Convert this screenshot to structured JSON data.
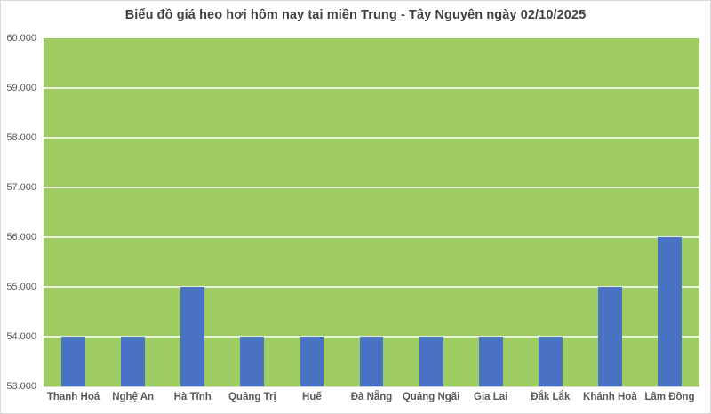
{
  "chart_data": {
    "type": "bar",
    "title": "Biểu đồ giá heo hơi hôm nay tại miền Trung - Tây Nguyên ngày 02/10/2025",
    "categories": [
      "Thanh Hoá",
      "Nghệ An",
      "Hà Tĩnh",
      "Quảng Trị",
      "Huế",
      "Đà Nẵng",
      "Quảng Ngãi",
      "Gia Lai",
      "Đắk Lắk",
      "Khánh Hoà",
      "Lâm Đồng"
    ],
    "values": [
      54000,
      54000,
      55000,
      54000,
      54000,
      54000,
      54000,
      54000,
      54000,
      55000,
      56000
    ],
    "xlabel": "",
    "ylabel": "",
    "ylim": [
      53000,
      60000
    ],
    "y_ticks": [
      {
        "value": 60000,
        "label": "60.000"
      },
      {
        "value": 59000,
        "label": "59.000"
      },
      {
        "value": 58000,
        "label": "58.000"
      },
      {
        "value": 57000,
        "label": "57.000"
      },
      {
        "value": 56000,
        "label": "56.000"
      },
      {
        "value": 55000,
        "label": "55.000"
      },
      {
        "value": 54000,
        "label": "54.000"
      },
      {
        "value": 53000,
        "label": "53.000"
      }
    ],
    "grid": "horizontal",
    "legend": "none",
    "colors": {
      "bar": "#4A72C4",
      "plot_background": "#9ECC63",
      "gridline": "#E9F1DD",
      "title_text": "#404040",
      "tick_label_text": "#595959",
      "frame_border": "#D9D9D9",
      "axis_line": "#D6D6D6",
      "background": "#FFFFFF"
    }
  }
}
